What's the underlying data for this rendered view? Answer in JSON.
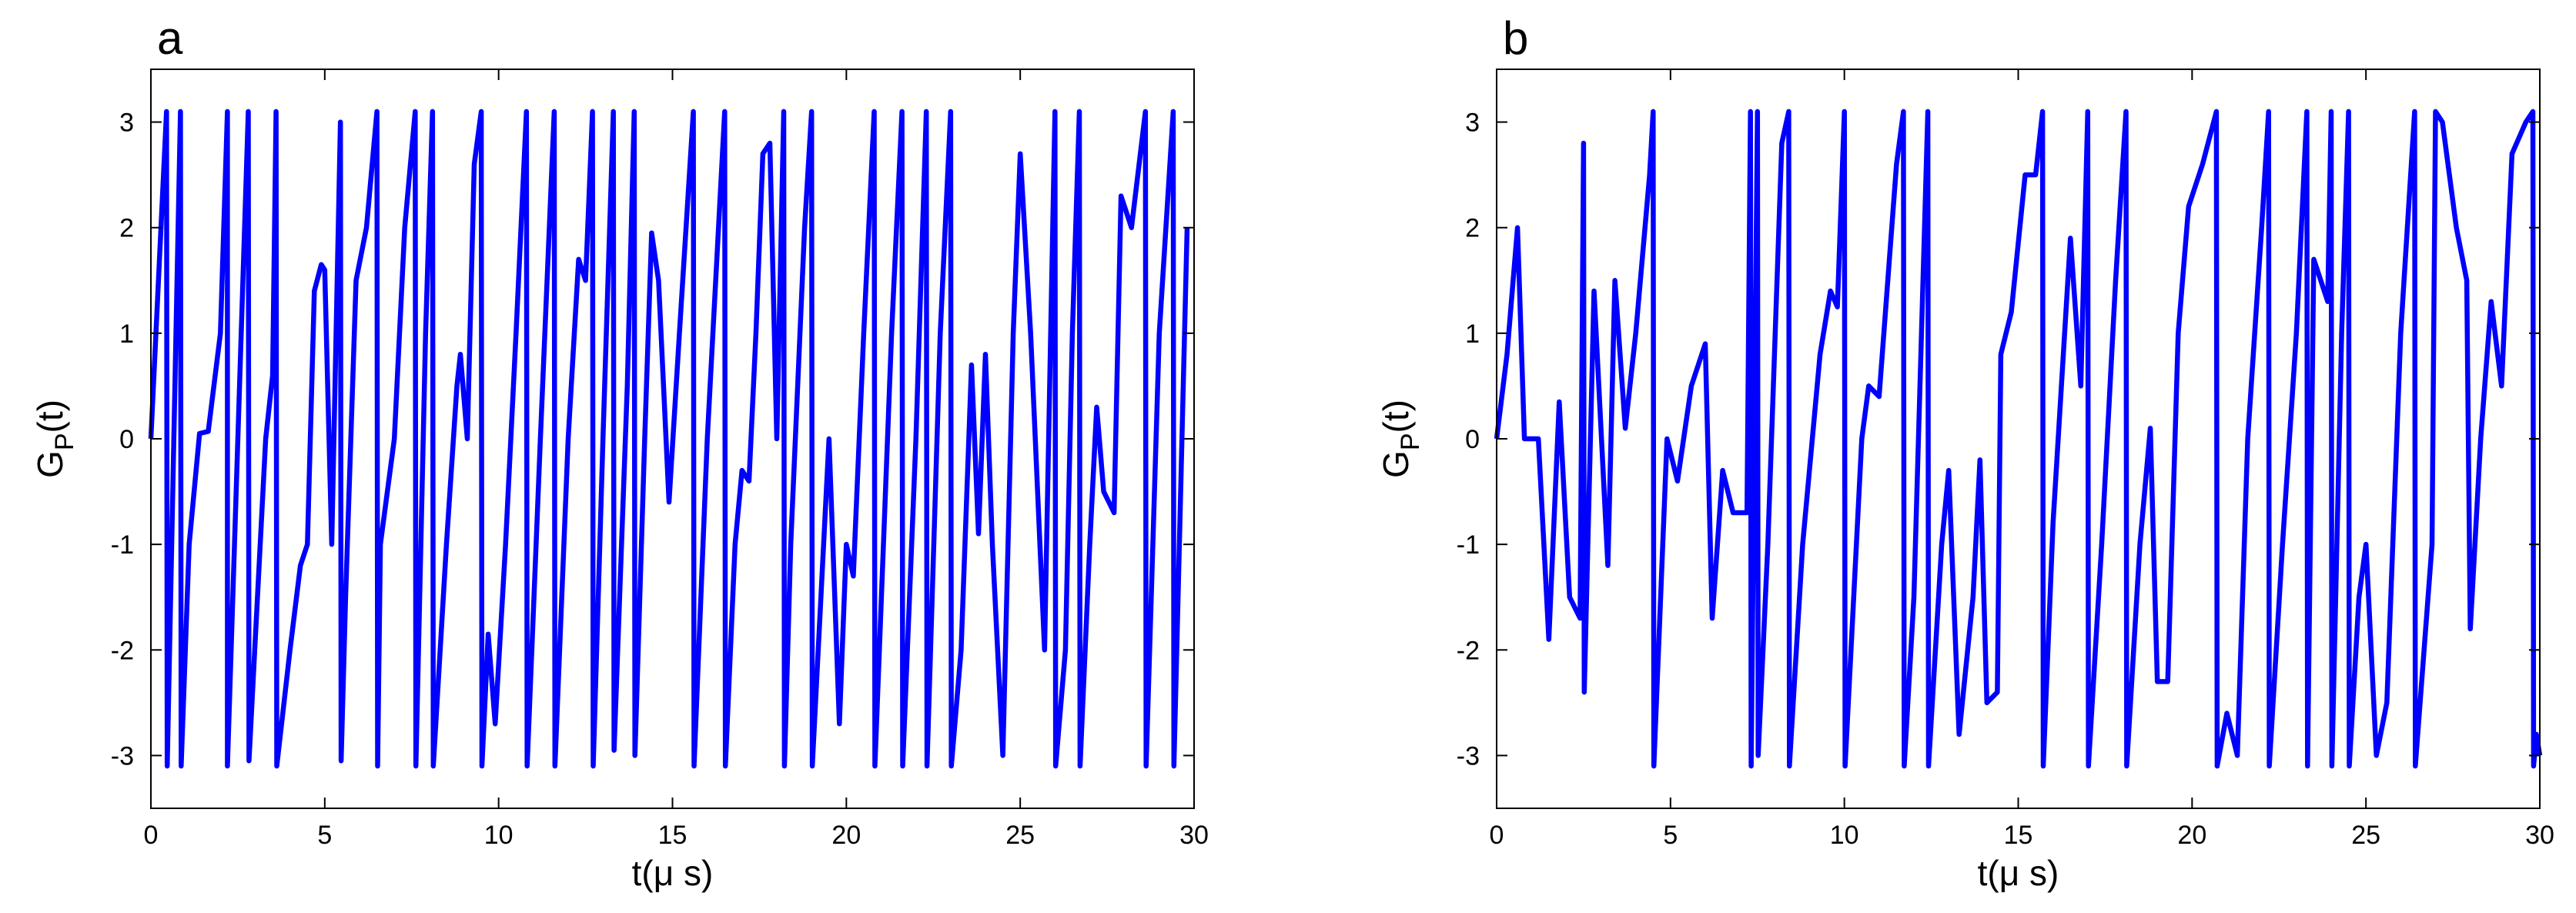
{
  "chart_data": [
    {
      "type": "line",
      "title": "a",
      "xlabel": "t(μ s)",
      "ylabel": [
        "G",
        "P",
        "(t)"
      ],
      "xlim": [
        0,
        30
      ],
      "ylim": [
        -3.5,
        3.5
      ],
      "xticks": [
        0,
        5,
        10,
        15,
        20,
        25,
        30
      ],
      "yticks": [
        -3,
        -2,
        -1,
        0,
        1,
        2,
        3
      ],
      "series": [
        {
          "color": "#0000ff",
          "x": [
            0,
            0.45,
            0.47,
            0.85,
            0.87,
            1.1,
            1.4,
            1.65,
            2.0,
            2.2,
            2.2,
            2.8,
            2.82,
            3.3,
            3.5,
            3.6,
            3.62,
            4.0,
            4.3,
            4.5,
            4.7,
            4.9,
            5.0,
            5.2,
            5.45,
            5.47,
            5.6,
            5.9,
            6.2,
            6.5,
            6.52,
            6.6,
            7.0,
            7.3,
            7.6,
            7.62,
            7.9,
            8.1,
            8.12,
            8.5,
            8.8,
            8.9,
            9.1,
            9.3,
            9.5,
            9.52,
            9.7,
            9.9,
            10.2,
            10.5,
            10.8,
            10.82,
            11.2,
            11.6,
            11.62,
            12.0,
            12.3,
            12.5,
            12.7,
            12.72,
            13.0,
            13.3,
            13.32,
            13.7,
            13.9,
            13.92,
            14.2,
            14.4,
            14.6,
            14.9,
            15.2,
            15.6,
            15.62,
            16.0,
            16.5,
            16.52,
            16.8,
            17.0,
            17.2,
            17.4,
            17.6,
            17.8,
            18.0,
            18.2,
            18.22,
            18.4,
            18.8,
            19.0,
            19.02,
            19.5,
            19.8,
            20.0,
            20.2,
            20.5,
            20.8,
            20.82,
            21.3,
            21.6,
            21.62,
            22.0,
            22.3,
            22.32,
            22.7,
            23.0,
            23.02,
            23.3,
            23.6,
            23.8,
            24.0,
            24.2,
            24.5,
            24.8,
            25.0,
            25.3,
            25.7,
            26.0,
            26.02,
            26.3,
            26.5,
            26.7,
            26.72,
            27.0,
            27.2,
            27.4,
            27.7,
            27.9,
            28.2,
            28.6,
            28.62,
            29.0,
            29.4,
            29.42,
            29.8
          ],
          "values": [
            0,
            3.1,
            -3.1,
            3.1,
            -3.1,
            -1,
            0.05,
            0.07,
            1,
            3.1,
            -3.1,
            3.1,
            -3.05,
            0,
            0.6,
            3.1,
            -3.1,
            -2,
            -1.2,
            -1,
            1.4,
            1.65,
            1.6,
            -1,
            3,
            -3.05,
            -1.5,
            1.5,
            2,
            3.1,
            -3.1,
            -1,
            0,
            2,
            3.1,
            -3.1,
            1,
            3.1,
            -3.1,
            -1,
            0.5,
            0.8,
            0,
            2.6,
            3.1,
            -3.1,
            -1.85,
            -2.7,
            -1,
            1,
            3.1,
            -3.1,
            0,
            3.1,
            -3.1,
            0,
            1.7,
            1.5,
            3.1,
            -3.1,
            0,
            3.1,
            -2.95,
            0.5,
            3.1,
            -3,
            0,
            1.95,
            1.5,
            -0.6,
            1,
            3.1,
            -3.1,
            0,
            3.1,
            -3.1,
            -1,
            -0.3,
            -0.4,
            1,
            2.7,
            2.8,
            0,
            3.1,
            -3.1,
            -1,
            2,
            3.1,
            -3.1,
            0,
            -2.7,
            -1,
            -1.3,
            1,
            3.1,
            -3.1,
            1,
            3.1,
            -3.1,
            0,
            3.1,
            -3.1,
            1,
            3.1,
            -3.1,
            -2,
            0.7,
            -0.9,
            0.8,
            -1,
            -3,
            1,
            2.7,
            1,
            -2,
            3.1,
            -3.1,
            -2,
            1,
            3.1,
            -3.1,
            -1,
            0.3,
            -0.5,
            -0.7,
            2.3,
            2.0,
            3.1,
            -3.1,
            1,
            3.1,
            -3.1,
            2
          ]
        }
      ]
    },
    {
      "type": "line",
      "title": "b",
      "xlabel": "t(μ s)",
      "ylabel": [
        "G",
        "P",
        "(t)"
      ],
      "xlim": [
        0,
        30
      ],
      "ylim": [
        -3.5,
        3.5
      ],
      "xticks": [
        0,
        5,
        10,
        15,
        20,
        25,
        30
      ],
      "yticks": [
        -3,
        -2,
        -1,
        0,
        1,
        2,
        3
      ],
      "series": [
        {
          "color": "#0000ff",
          "x": [
            0,
            0.3,
            0.6,
            0.8,
            1.2,
            1.5,
            1.8,
            2.1,
            2.4,
            2.5,
            2.52,
            2.8,
            3.2,
            3.4,
            3.7,
            4.0,
            4.4,
            4.5,
            4.52,
            4.9,
            5.2,
            5.6,
            6.0,
            6.2,
            6.5,
            6.8,
            7.2,
            7.3,
            7.32,
            7.5,
            7.52,
            7.8,
            8.2,
            8.4,
            8.42,
            8.8,
            9.3,
            9.6,
            9.8,
            10.0,
            10.02,
            10.5,
            10.7,
            11.0,
            11.5,
            11.7,
            11.72,
            12.0,
            12.4,
            12.42,
            12.8,
            13.0,
            13.3,
            13.7,
            13.9,
            14.1,
            14.4,
            14.5,
            14.8,
            15.2,
            15.5,
            15.7,
            15.72,
            16.0,
            16.5,
            16.8,
            17.0,
            17.02,
            17.4,
            17.8,
            18.1,
            18.12,
            18.5,
            18.8,
            19.0,
            19.3,
            19.6,
            19.9,
            20.3,
            20.7,
            20.72,
            21.0,
            21.3,
            21.6,
            22.0,
            22.2,
            22.22,
            22.6,
            23.0,
            23.3,
            23.32,
            23.5,
            23.9,
            24.0,
            24.02,
            24.3,
            24.5,
            24.52,
            24.8,
            25.0,
            25.3,
            25.6,
            26.0,
            26.4,
            26.42,
            26.9,
            27.0,
            27.2,
            27.6,
            27.9,
            28.0,
            28.3,
            28.6,
            28.9,
            29.2,
            29.6,
            29.8,
            29.82,
            29.9,
            30.0
          ],
          "values": [
            0,
            0.8,
            2,
            0,
            0,
            -1.9,
            0.35,
            -1.5,
            -1.7,
            2.8,
            -2.4,
            1.4,
            -1.2,
            1.5,
            0.1,
            1,
            2.5,
            3.1,
            -3.1,
            0,
            -0.4,
            0.5,
            0.9,
            -1.7,
            -0.3,
            -0.7,
            -0.7,
            3.1,
            -3.1,
            3.1,
            -3,
            -1,
            2.8,
            3.1,
            -3.1,
            -1,
            0.8,
            1.4,
            1.25,
            3.1,
            -3.1,
            0,
            0.5,
            0.4,
            2.6,
            3.1,
            -3.1,
            -1.5,
            3.1,
            -3.1,
            -1,
            -0.3,
            -2.8,
            -1.5,
            -0.2,
            -2.5,
            -2.4,
            0.8,
            1.2,
            2.5,
            2.5,
            3.1,
            -3.1,
            -0.8,
            1.9,
            0.5,
            3.1,
            -3.1,
            -1,
            1.5,
            3.1,
            -3.1,
            -1,
            0.1,
            -2.3,
            -2.3,
            1,
            2.2,
            2.6,
            3.1,
            -3.1,
            -2.6,
            -3,
            0,
            2,
            3.1,
            -3.1,
            -1,
            1,
            3.1,
            -3.1,
            1.7,
            1.3,
            3.1,
            -3.1,
            1,
            3.1,
            -3.1,
            -1.5,
            -1,
            -3,
            -2.5,
            1,
            3.1,
            -3.1,
            -1,
            3.1,
            3,
            2,
            1.5,
            -1.8,
            0,
            1.3,
            0.5,
            2.7,
            3.0,
            3.1,
            -3.1,
            -2.8,
            -3
          ]
        }
      ]
    }
  ]
}
